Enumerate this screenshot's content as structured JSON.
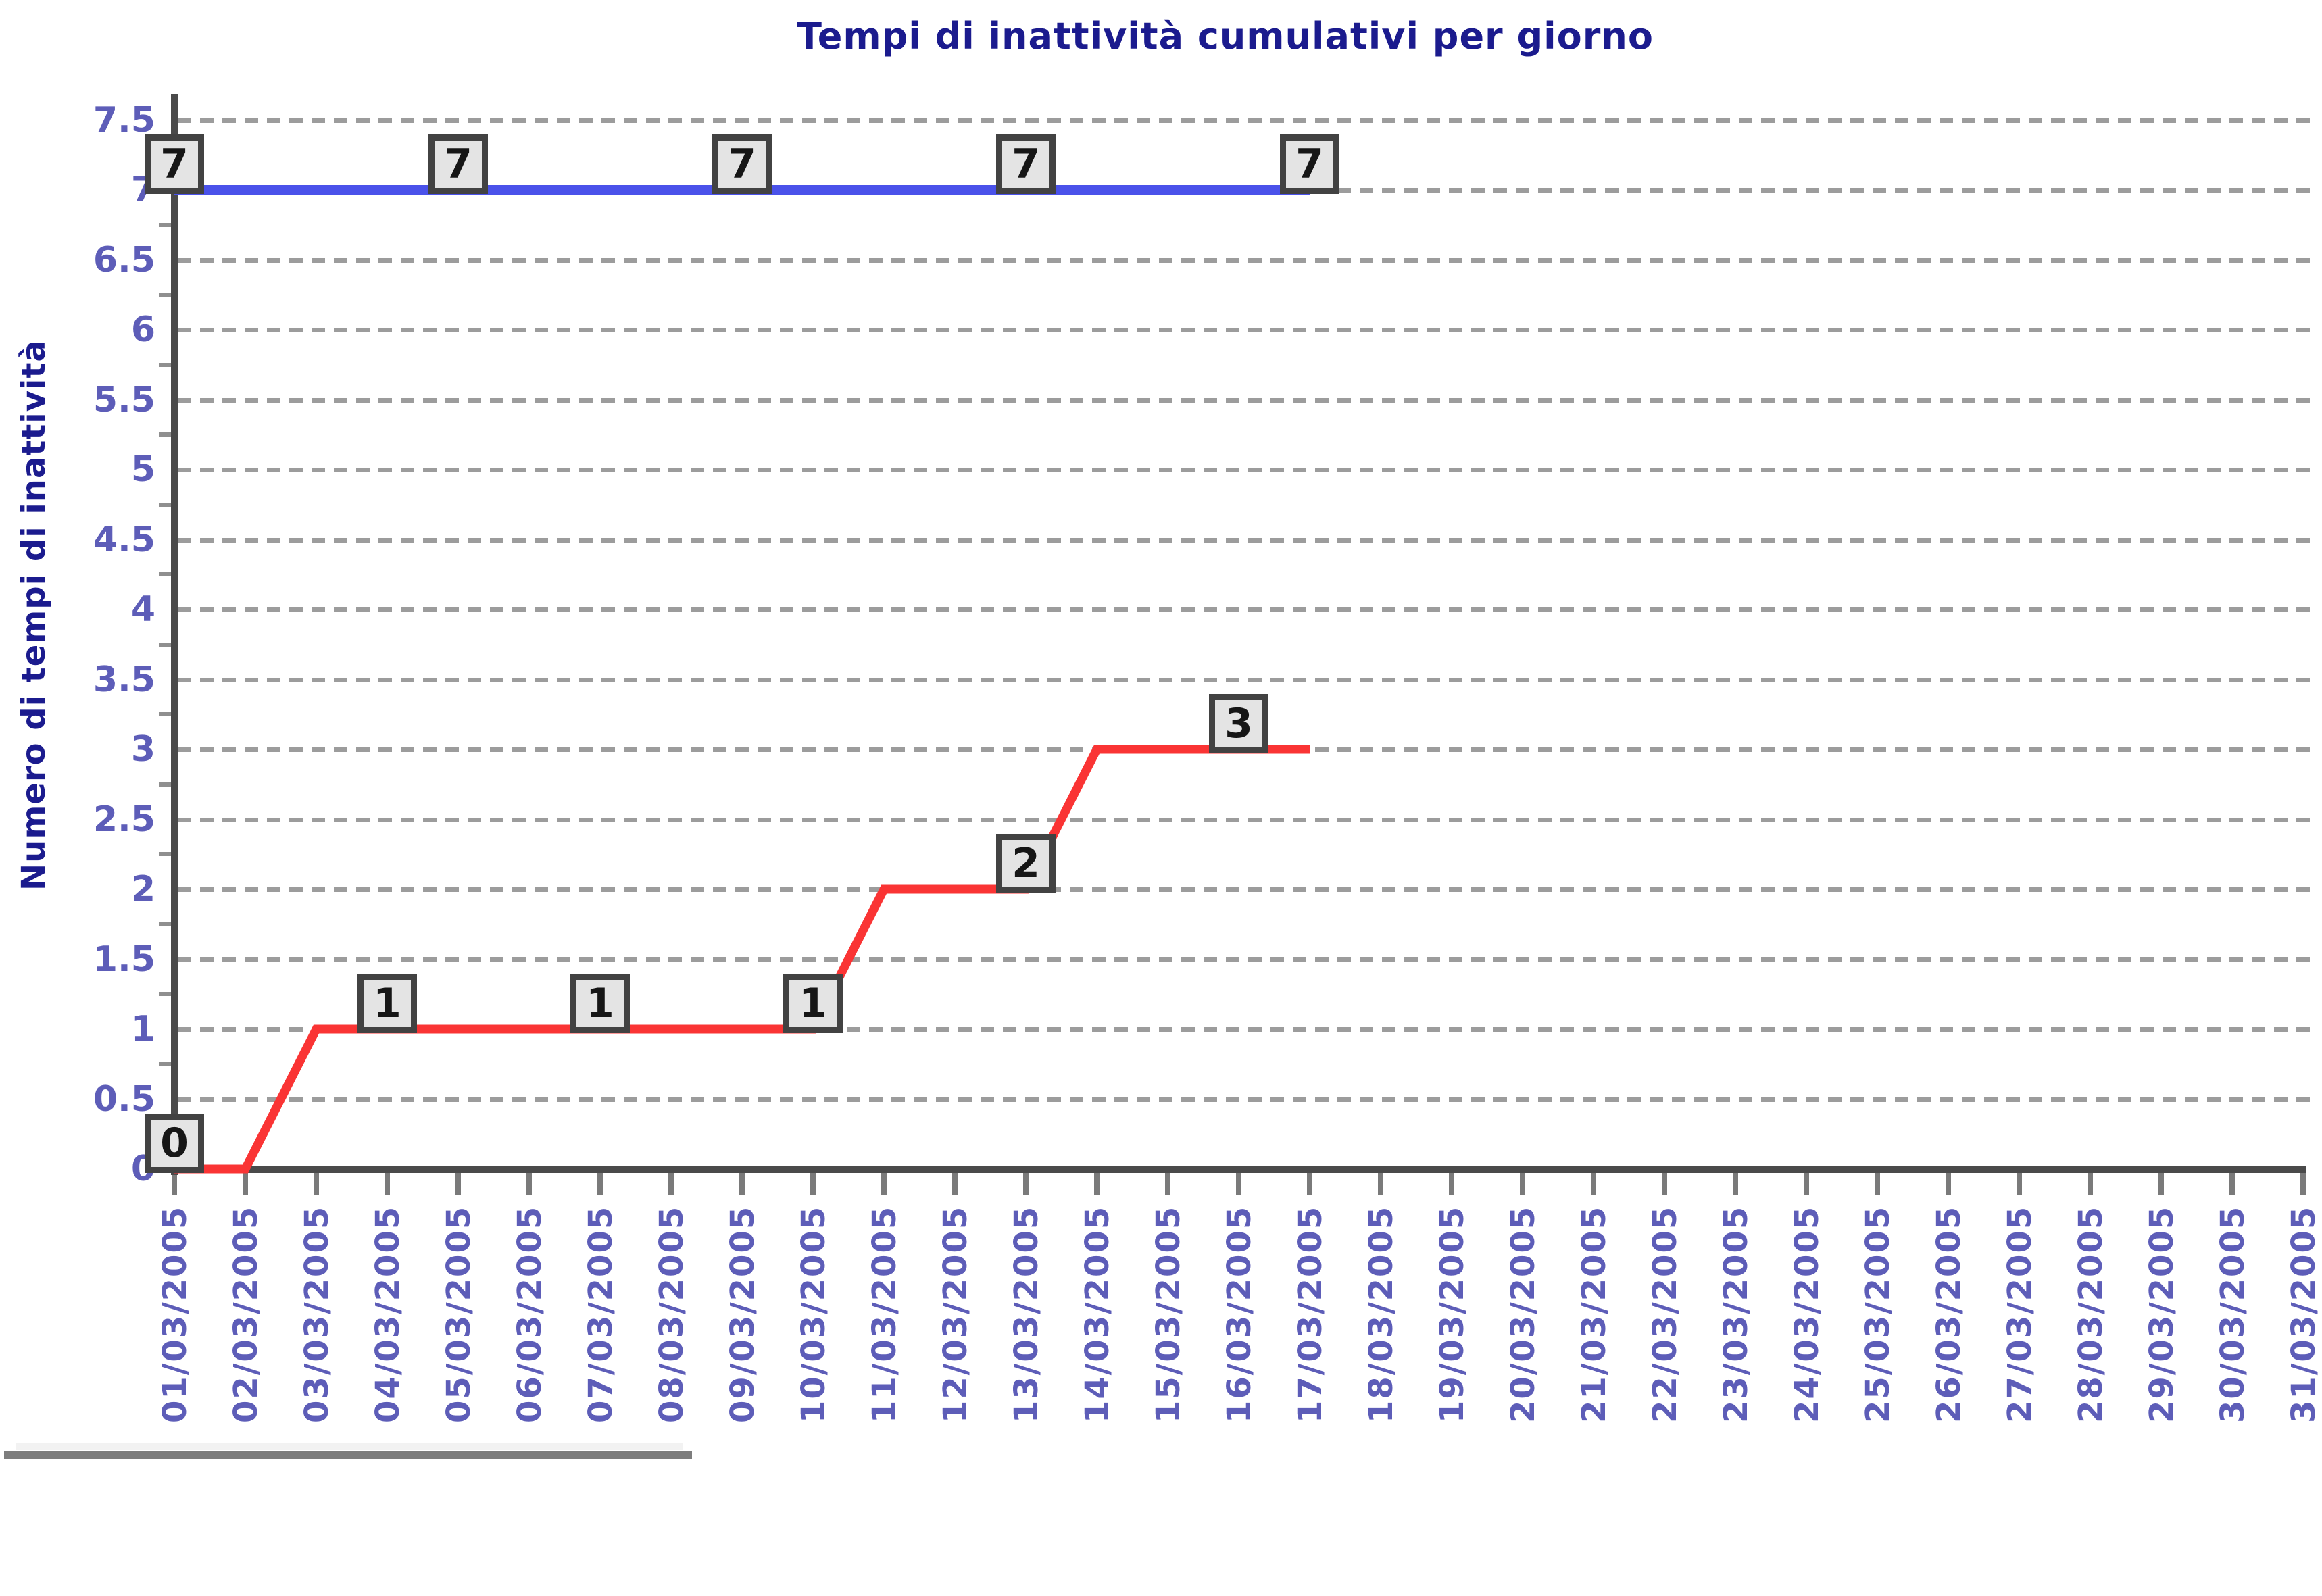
{
  "title": {
    "text": "Tempi di inattività cumulativi per giorno"
  },
  "y_axis": {
    "title": "Numero di tempi di inattività",
    "tick_labels": [
      "0",
      "0.5",
      "1",
      "1.5",
      "2",
      "2.5",
      "3",
      "3.5",
      "4",
      "4.5",
      "5",
      "5.5",
      "6",
      "6.5",
      "7",
      "7.5"
    ]
  },
  "x_axis": {
    "tick_labels": [
      "01/03/2005",
      "02/03/2005",
      "03/03/2005",
      "04/03/2005",
      "05/03/2005",
      "06/03/2005",
      "07/03/2005",
      "08/03/2005",
      "09/03/2005",
      "10/03/2005",
      "11/03/2005",
      "12/03/2005",
      "13/03/2005",
      "14/03/2005",
      "15/03/2005",
      "16/03/2005",
      "17/03/2005",
      "18/03/2005",
      "19/03/2005",
      "20/03/2005",
      "21/03/2005",
      "22/03/2005",
      "23/03/2005",
      "24/03/2005",
      "25/03/2005",
      "26/03/2005",
      "27/03/2005",
      "28/03/2005",
      "29/03/2005",
      "30/03/2005",
      "31/03/2005"
    ]
  },
  "chart_data": {
    "type": "line",
    "title": "Tempi di inattività cumulativi per giorno",
    "xlabel": "",
    "ylabel": "Numero di tempi di inattività",
    "categories": [
      "01/03/2005",
      "02/03/2005",
      "03/03/2005",
      "04/03/2005",
      "05/03/2005",
      "06/03/2005",
      "07/03/2005",
      "08/03/2005",
      "09/03/2005",
      "10/03/2005",
      "11/03/2005",
      "12/03/2005",
      "13/03/2005",
      "14/03/2005",
      "15/03/2005",
      "16/03/2005",
      "17/03/2005",
      "18/03/2005",
      "19/03/2005",
      "20/03/2005",
      "21/03/2005",
      "22/03/2005",
      "23/03/2005",
      "24/03/2005",
      "25/03/2005",
      "26/03/2005",
      "27/03/2005",
      "28/03/2005",
      "29/03/2005",
      "30/03/2005",
      "31/03/2005"
    ],
    "ylim": [
      0,
      7.5
    ],
    "ytick_step": 0.5,
    "grid": "horizontal-dashed",
    "legend": "none",
    "series": [
      {
        "name": "series-blue",
        "color": "#4a52ea",
        "values": [
          7,
          7,
          7,
          7,
          7,
          7,
          7,
          7,
          7,
          7,
          7,
          7,
          7,
          7,
          7,
          7,
          7
        ]
      },
      {
        "name": "series-red",
        "color": "#fa3434",
        "values": [
          0,
          0,
          1,
          1,
          1,
          1,
          1,
          1,
          1,
          1,
          2,
          2,
          2,
          3,
          3,
          3,
          3
        ]
      }
    ],
    "data_label_indices": [
      [
        0,
        4,
        8,
        12,
        16
      ],
      [
        0,
        3,
        6,
        9,
        12,
        15
      ]
    ]
  },
  "colors": {
    "title": "#1b1b8e",
    "axis": "#4a4a4a",
    "grid": "#9c9c9c",
    "tick_label": "#5d5db8",
    "series_blue": "#4a52ea",
    "series_red": "#fa3434",
    "box_bg": "#e4e4e4",
    "box_border": "#424242",
    "box_text": "#161616",
    "footer_bar": "#7d7d7d",
    "footer_strip": "#f2f2f2"
  }
}
